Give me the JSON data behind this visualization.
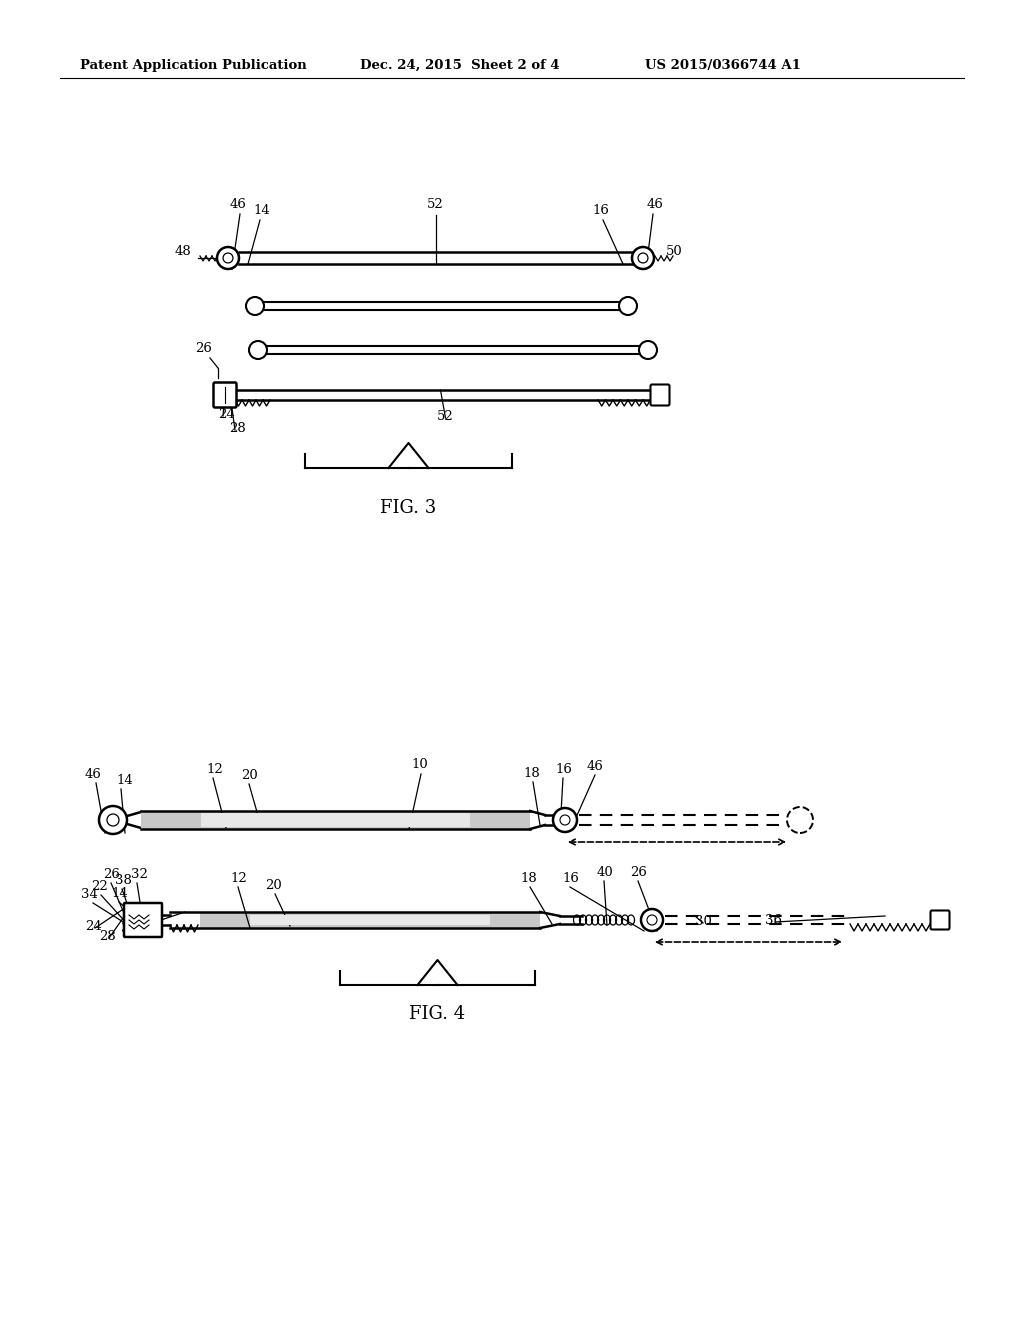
{
  "header_left": "Patent Application Publication",
  "header_mid": "Dec. 24, 2015  Sheet 2 of 4",
  "header_right": "US 2015/0366744 A1",
  "fig3_label": "FIG. 3",
  "fig4_label": "FIG. 4",
  "bg_color": "#ffffff",
  "line_color": "#000000"
}
